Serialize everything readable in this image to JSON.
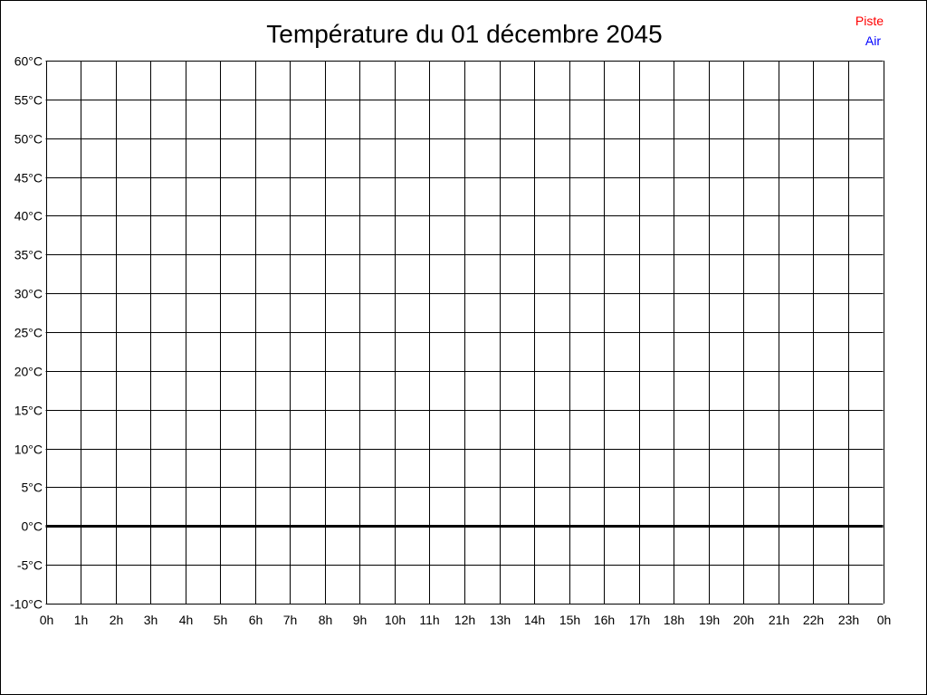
{
  "chart_data": {
    "type": "line",
    "title": "Température du 01 décembre 2045",
    "xlabel": "",
    "ylabel": "",
    "x_ticks": [
      "0h",
      "1h",
      "2h",
      "3h",
      "4h",
      "5h",
      "6h",
      "7h",
      "8h",
      "9h",
      "10h",
      "11h",
      "12h",
      "13h",
      "14h",
      "15h",
      "16h",
      "17h",
      "18h",
      "19h",
      "20h",
      "21h",
      "22h",
      "23h",
      "0h"
    ],
    "y_ticks": [
      "-10°C",
      "-5°C",
      "0°C",
      "5°C",
      "10°C",
      "15°C",
      "20°C",
      "25°C",
      "30°C",
      "35°C",
      "40°C",
      "45°C",
      "50°C",
      "55°C",
      "60°C"
    ],
    "ylim": [
      -10,
      60
    ],
    "xlim": [
      0,
      24
    ],
    "grid": true,
    "legend_placement": "top-right",
    "series": [
      {
        "name": "Piste",
        "color": "#ff0000",
        "values": []
      },
      {
        "name": "Air",
        "color": "#0000ff",
        "values": []
      }
    ]
  }
}
